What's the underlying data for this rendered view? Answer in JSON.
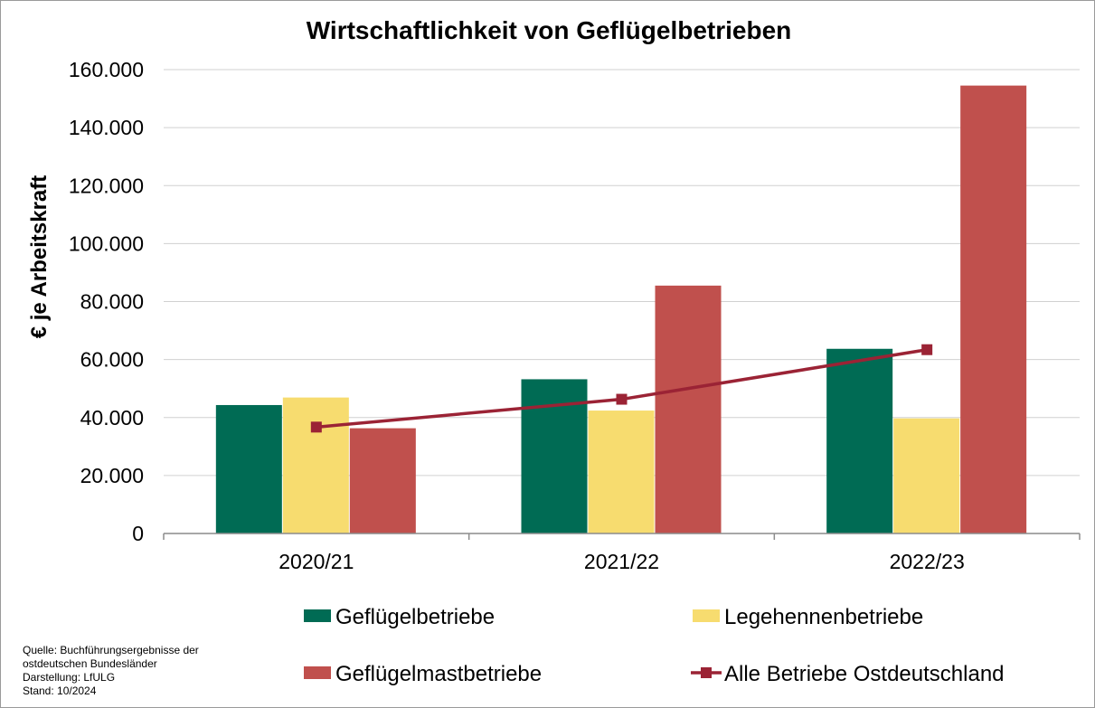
{
  "chart_data": {
    "type": "bar",
    "title": "Wirtschaftlichkeit von Geflügelbetrieben",
    "ylabel": "€ je Arbeitskraft",
    "xlabel": "",
    "categories": [
      "2020/21",
      "2021/22",
      "2022/23"
    ],
    "ylim": [
      0,
      160000
    ],
    "yticks": [
      0,
      20000,
      40000,
      60000,
      80000,
      100000,
      120000,
      140000,
      160000
    ],
    "ytick_labels": [
      "0",
      "20.000",
      "40.000",
      "60.000",
      "80.000",
      "100.000",
      "120.000",
      "140.000",
      "160.000"
    ],
    "grid": true,
    "legend_position": "bottom",
    "series": [
      {
        "name": "Geflügelbetriebe",
        "type": "bar",
        "color": "#006B54",
        "values": [
          44300,
          53200,
          63700
        ]
      },
      {
        "name": "Legehennenbetriebe",
        "type": "bar",
        "color": "#F7DC6F",
        "values": [
          46900,
          42400,
          39700
        ]
      },
      {
        "name": "Geflügelmastbetriebe",
        "type": "bar",
        "color": "#C0504D",
        "values": [
          36300,
          85500,
          154500
        ]
      },
      {
        "name": "Alle Betriebe Ostdeutschland",
        "type": "line",
        "color": "#9B2335",
        "marker": "square",
        "values": [
          36700,
          46300,
          63400
        ]
      }
    ],
    "source_note": [
      "Quelle: Buchführungsergebnisse der",
      "ostdeutschen Bundesländer",
      "Darstellung: LfULG",
      "Stand: 10/2024"
    ]
  }
}
